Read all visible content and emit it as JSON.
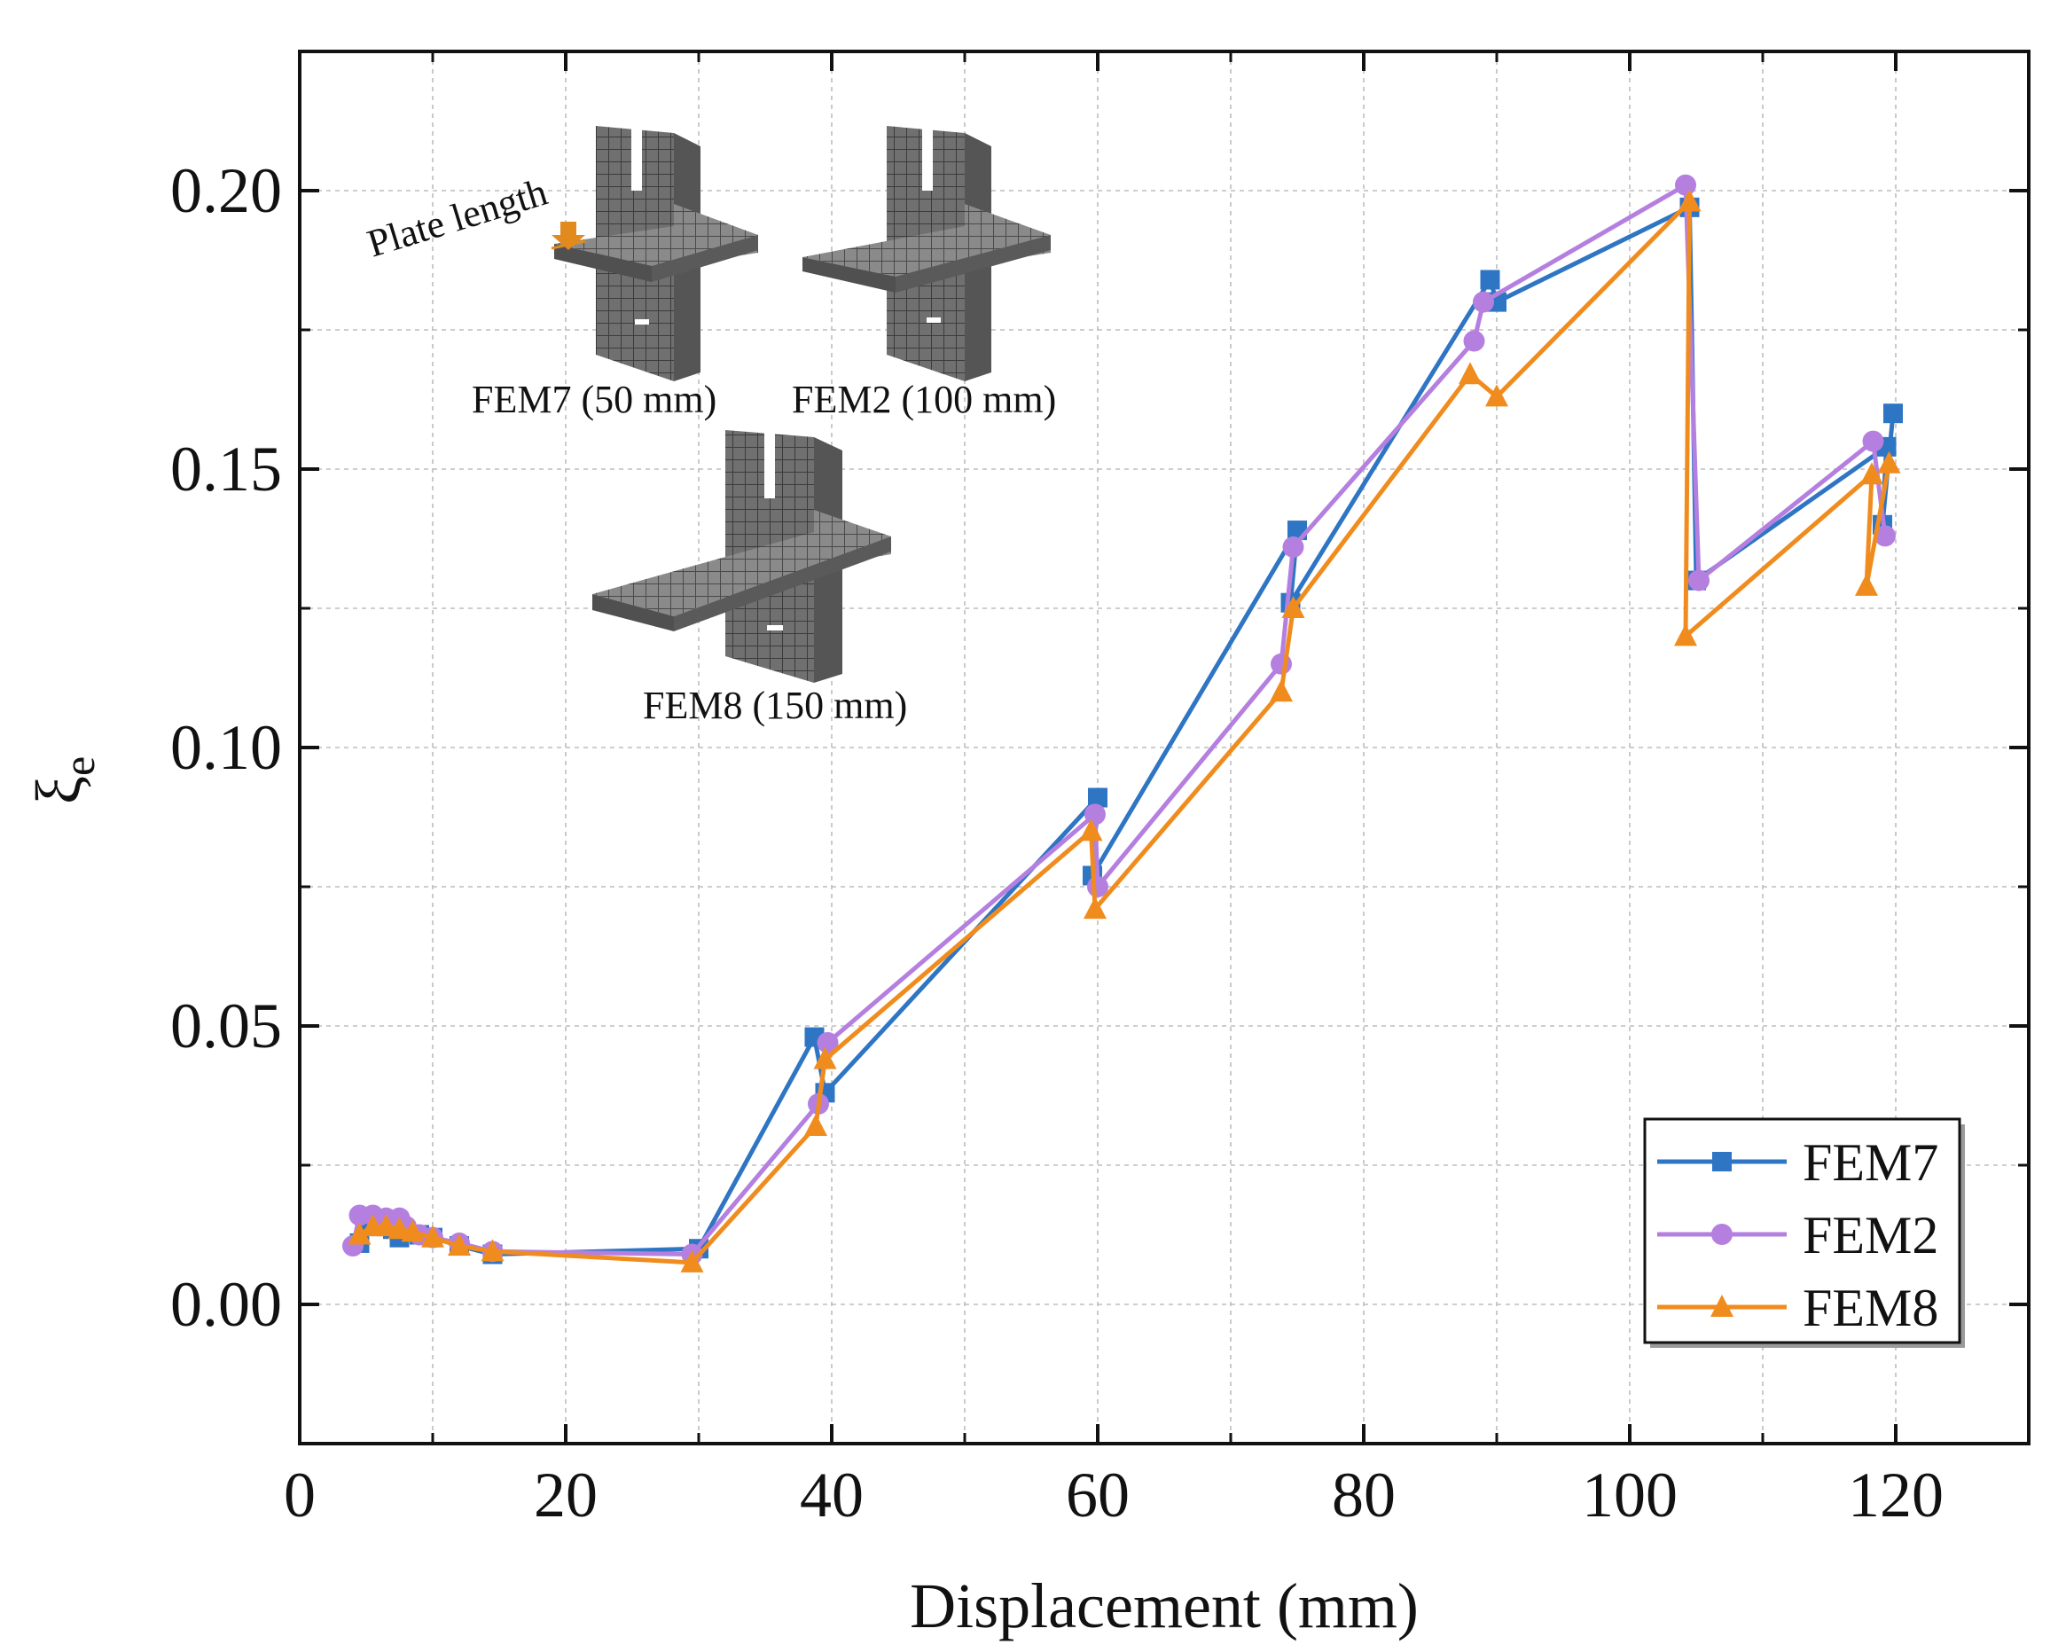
{
  "chart_data": {
    "type": "line",
    "title": "",
    "xlabel": "Displacement (mm)",
    "ylabel_symbol": "ξ",
    "ylabel_subscript": "e",
    "xlim": [
      0,
      130
    ],
    "ylim": [
      -0.025,
      0.225
    ],
    "xticks": [
      0,
      20,
      40,
      60,
      80,
      100,
      120
    ],
    "yticks": [
      0.0,
      0.05,
      0.1,
      0.15,
      0.2
    ],
    "xtick_labels": [
      "0",
      "20",
      "40",
      "60",
      "80",
      "100",
      "120"
    ],
    "ytick_labels": [
      "0.00",
      "0.05",
      "0.10",
      "0.15",
      "0.20"
    ],
    "grid": true,
    "legend_position": "bottom-right",
    "series": [
      {
        "name": "FEM7",
        "color": "#2e75c4",
        "marker": "square",
        "points": [
          [
            4.5,
            0.011
          ],
          [
            5,
            0.0145
          ],
          [
            5.5,
            0.015
          ],
          [
            6,
            0.0145
          ],
          [
            6.5,
            0.014
          ],
          [
            7,
            0.0135
          ],
          [
            7.5,
            0.012
          ],
          [
            8,
            0.013
          ],
          [
            9,
            0.0125
          ],
          [
            10,
            0.012
          ],
          [
            12,
            0.0105
          ],
          [
            14.5,
            0.009
          ],
          [
            30,
            0.01
          ],
          [
            38.7,
            0.048
          ],
          [
            39.5,
            0.038
          ],
          [
            60,
            0.091
          ],
          [
            59.6,
            0.077
          ],
          [
            75,
            0.139
          ],
          [
            74.5,
            0.126
          ],
          [
            89.5,
            0.184
          ],
          [
            90,
            0.18
          ],
          [
            104.5,
            0.197
          ],
          [
            105,
            0.13
          ],
          [
            119.3,
            0.154
          ],
          [
            119,
            0.14
          ],
          [
            119.8,
            0.16
          ]
        ]
      },
      {
        "name": "FEM2",
        "color": "#b57fe0",
        "marker": "circle",
        "points": [
          [
            4,
            0.0105
          ],
          [
            4.5,
            0.016
          ],
          [
            5.5,
            0.016
          ],
          [
            6.5,
            0.0155
          ],
          [
            7.5,
            0.0155
          ],
          [
            8,
            0.014
          ],
          [
            9,
            0.0125
          ],
          [
            10,
            0.012
          ],
          [
            12,
            0.011
          ],
          [
            14.5,
            0.0095
          ],
          [
            29.5,
            0.009
          ],
          [
            39,
            0.036
          ],
          [
            39.7,
            0.047
          ],
          [
            59.8,
            0.088
          ],
          [
            60,
            0.075
          ],
          [
            73.8,
            0.115
          ],
          [
            74.7,
            0.136
          ],
          [
            88.3,
            0.173
          ],
          [
            89,
            0.18
          ],
          [
            104.2,
            0.201
          ],
          [
            105.2,
            0.13
          ],
          [
            118.3,
            0.155
          ],
          [
            119.2,
            0.138
          ]
        ]
      },
      {
        "name": "FEM8",
        "color": "#f08c1e",
        "marker": "triangle",
        "points": [
          [
            4.5,
            0.0125
          ],
          [
            5.5,
            0.014
          ],
          [
            6.5,
            0.014
          ],
          [
            7.5,
            0.0135
          ],
          [
            8.5,
            0.013
          ],
          [
            10,
            0.012
          ],
          [
            12,
            0.0105
          ],
          [
            14.5,
            0.0095
          ],
          [
            29.5,
            0.0075
          ],
          [
            38.8,
            0.032
          ],
          [
            39.5,
            0.044
          ],
          [
            59.5,
            0.085
          ],
          [
            59.8,
            0.071
          ],
          [
            73.8,
            0.11
          ],
          [
            74.7,
            0.125
          ],
          [
            88,
            0.167
          ],
          [
            90,
            0.163
          ],
          [
            104.5,
            0.198
          ],
          [
            104.2,
            0.12
          ],
          [
            118.2,
            0.149
          ],
          [
            117.8,
            0.129
          ],
          [
            119.5,
            0.151
          ]
        ]
      }
    ],
    "inset": {
      "annotation": "Plate length",
      "captions": [
        "FEM7 (50 mm)",
        "FEM2 (100 mm)",
        "FEM8 (150 mm)"
      ]
    }
  }
}
